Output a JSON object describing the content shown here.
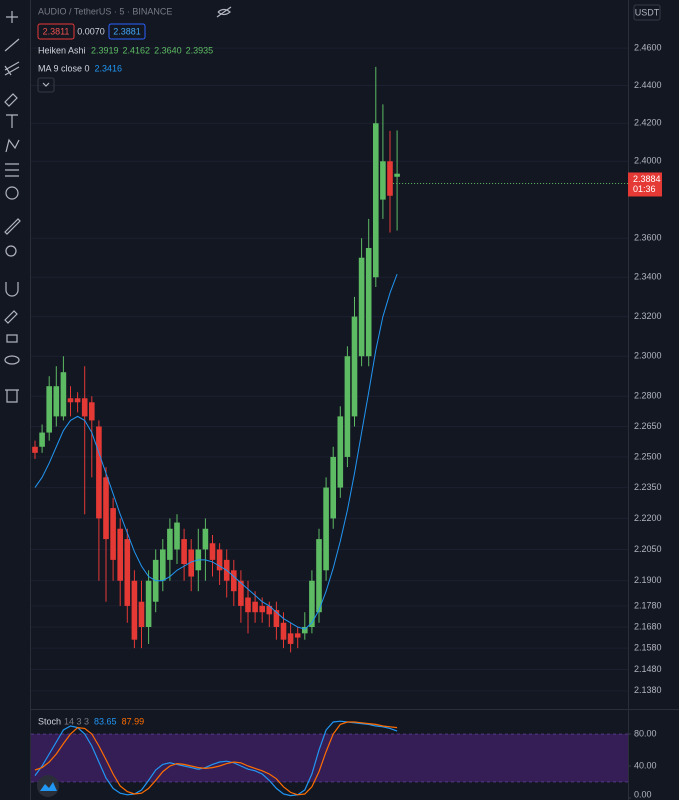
{
  "chart_data": [
    {
      "type": "candlestick",
      "title": "AUDIO / TetherUS · 5 · BINANCE",
      "currency": "USDT",
      "sell_price": 2.3811,
      "spread": {
        "value": 0.007,
        "label": "0.0070"
      },
      "buy_price": 2.3881,
      "series_name": "Heiken Ashi",
      "up_color": "#5dbb63",
      "down_color": "#e53935",
      "open": [
        2.255,
        2.255,
        2.262,
        2.27,
        2.27,
        2.279,
        2.279,
        2.279,
        2.277,
        2.265,
        2.24,
        2.225,
        2.215,
        2.21,
        2.19,
        2.18,
        2.168,
        2.18,
        2.19,
        2.2,
        2.205,
        2.21,
        2.205,
        2.195,
        2.205,
        2.208,
        2.205,
        2.2,
        2.195,
        2.19,
        2.182,
        2.18,
        2.178,
        2.178,
        2.176,
        2.17,
        2.165,
        2.165,
        2.165,
        2.168,
        2.175,
        2.195,
        2.22,
        2.235,
        2.25,
        2.27,
        2.3,
        2.3,
        2.34,
        2.38,
        2.4,
        2.3919
      ],
      "high": [
        2.258,
        2.266,
        2.29,
        2.295,
        2.3,
        2.285,
        2.282,
        2.295,
        2.28,
        2.268,
        2.245,
        2.23,
        2.22,
        2.215,
        2.195,
        2.19,
        2.195,
        2.205,
        2.21,
        2.22,
        2.222,
        2.215,
        2.21,
        2.215,
        2.22,
        2.212,
        2.208,
        2.205,
        2.2,
        2.195,
        2.19,
        2.185,
        2.182,
        2.18,
        2.18,
        2.175,
        2.17,
        2.168,
        2.175,
        2.195,
        2.215,
        2.24,
        2.255,
        2.275,
        2.305,
        2.33,
        2.36,
        2.37,
        2.45,
        2.43,
        2.416,
        2.4162
      ],
      "low": [
        2.249,
        2.252,
        2.258,
        2.265,
        2.268,
        2.27,
        2.272,
        2.222,
        2.24,
        2.19,
        2.18,
        2.19,
        2.178,
        2.17,
        2.158,
        2.158,
        2.16,
        2.175,
        2.185,
        2.19,
        2.198,
        2.19,
        2.185,
        2.185,
        2.19,
        2.192,
        2.188,
        2.182,
        2.178,
        2.17,
        2.165,
        2.17,
        2.17,
        2.168,
        2.162,
        2.158,
        2.156,
        2.158,
        2.162,
        2.165,
        2.17,
        2.19,
        2.215,
        2.23,
        2.245,
        2.265,
        2.295,
        2.295,
        2.335,
        2.37,
        2.363,
        2.364
      ],
      "close": [
        2.252,
        2.262,
        2.285,
        2.285,
        2.292,
        2.277,
        2.277,
        2.27,
        2.268,
        2.22,
        2.21,
        2.2,
        2.19,
        2.178,
        2.162,
        2.168,
        2.19,
        2.2,
        2.205,
        2.215,
        2.218,
        2.198,
        2.192,
        2.205,
        2.215,
        2.2,
        2.195,
        2.19,
        2.185,
        2.178,
        2.175,
        2.175,
        2.175,
        2.174,
        2.168,
        2.162,
        2.16,
        2.163,
        2.168,
        2.19,
        2.21,
        2.235,
        2.25,
        2.27,
        2.3,
        2.32,
        2.35,
        2.355,
        2.42,
        2.4,
        2.382,
        2.3935
      ],
      "last_labels": [
        "2.3919",
        "2.4162",
        "2.3640",
        "2.3935"
      ],
      "ma": {
        "name": "MA 9 close 0",
        "color": "#2196f3",
        "values": [
          2.235,
          2.24,
          2.247,
          2.255,
          2.263,
          2.268,
          2.27,
          2.268,
          2.262,
          2.252,
          2.242,
          2.232,
          2.222,
          2.213,
          2.204,
          2.197,
          2.192,
          2.19,
          2.19,
          2.192,
          2.195,
          2.197,
          2.199,
          2.2,
          2.2,
          2.199,
          2.197,
          2.195,
          2.192,
          2.189,
          2.186,
          2.183,
          2.18,
          2.178,
          2.175,
          2.172,
          2.17,
          2.168,
          2.167,
          2.17,
          2.176,
          2.185,
          2.196,
          2.209,
          2.224,
          2.242,
          2.262,
          2.282,
          2.303,
          2.32,
          2.332,
          2.3416
        ]
      },
      "log_scale": true,
      "ylim": [
        2.13,
        2.486
      ],
      "yticks": [
        {
          "value": 2.46,
          "label": "2.4600"
        },
        {
          "value": 2.44,
          "label": "2.4400"
        },
        {
          "value": 2.42,
          "label": "2.4200"
        },
        {
          "value": 2.4,
          "label": "2.4000"
        },
        {
          "value": 2.36,
          "label": "2.3600"
        },
        {
          "value": 2.34,
          "label": "2.3400"
        },
        {
          "value": 2.32,
          "label": "2.3200"
        },
        {
          "value": 2.3,
          "label": "2.3000"
        },
        {
          "value": 2.28,
          "label": "2.2800"
        },
        {
          "value": 2.265,
          "label": "2.2650"
        },
        {
          "value": 2.25,
          "label": "2.2500"
        },
        {
          "value": 2.235,
          "label": "2.2350"
        },
        {
          "value": 2.22,
          "label": "2.2200"
        },
        {
          "value": 2.205,
          "label": "2.2050"
        },
        {
          "value": 2.19,
          "label": "2.1900"
        },
        {
          "value": 2.178,
          "label": "2.1780"
        },
        {
          "value": 2.168,
          "label": "2.1680"
        },
        {
          "value": 2.158,
          "label": "2.1580"
        },
        {
          "value": 2.148,
          "label": "2.1480"
        },
        {
          "value": 2.138,
          "label": "2.1380"
        }
      ],
      "price_tag": 2.3884,
      "countdown": "01:36"
    },
    {
      "type": "line",
      "title": "Stoch",
      "parameters": "14 3 3",
      "ylim": [
        0,
        100
      ],
      "band": [
        20,
        80
      ],
      "band_color": "#3a1f5c",
      "yticks": [
        {
          "value": 80,
          "label": "80.00"
        },
        {
          "value": 40,
          "label": "40.00"
        },
        {
          "value": 0,
          "label": "0.00"
        }
      ],
      "series": [
        {
          "color": "#2196f3",
          "values": [
            28,
            40,
            55,
            70,
            85,
            90,
            88,
            80,
            65,
            45,
            25,
            12,
            6,
            4,
            5,
            10,
            22,
            35,
            42,
            44,
            42,
            40,
            38,
            36,
            38,
            42,
            45,
            46,
            44,
            40,
            36,
            34,
            30,
            22,
            12,
            5,
            3,
            4,
            10,
            30,
            60,
            85,
            95,
            96,
            95,
            94,
            93,
            92,
            90,
            89,
            87,
            83.65
          ]
        },
        {
          "color": "#ff6d00",
          "values": [
            35,
            38,
            45,
            55,
            68,
            80,
            88,
            87,
            80,
            65,
            48,
            30,
            15,
            8,
            5,
            6,
            12,
            22,
            33,
            40,
            43,
            42,
            40,
            38,
            37,
            38,
            40,
            43,
            45,
            44,
            40,
            37,
            34,
            30,
            24,
            14,
            7,
            4,
            5,
            14,
            33,
            58,
            80,
            92,
            95,
            95,
            94,
            93,
            92,
            90,
            89,
            87.99
          ]
        }
      ]
    }
  ]
}
